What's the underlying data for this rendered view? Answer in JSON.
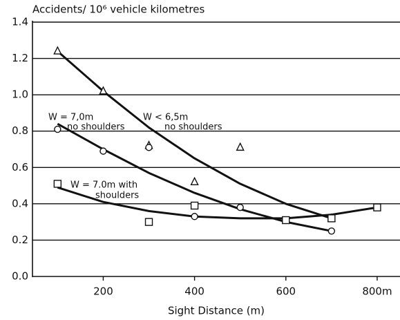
{
  "chart_data": {
    "type": "scatter",
    "title": "Accidents/ 10⁶ vehicle kilometres",
    "x_label": "Sight Distance (m)",
    "xlim": [
      45,
      850
    ],
    "ylim": [
      0,
      1.4
    ],
    "xticks": [
      200,
      400,
      600,
      {
        "value": 800,
        "label": "800m"
      }
    ],
    "yticks": [
      {
        "value": 0,
        "label": "0.0"
      },
      0.2,
      0.4,
      0.6,
      0.8,
      {
        "value": 1,
        "label": "1.0"
      },
      1.2,
      1.4
    ],
    "grid": true,
    "color": "#111111",
    "series": [
      {
        "marker": "triangle",
        "x": [
          100,
          200,
          300,
          400,
          500,
          700
        ],
        "values": [
          1.24,
          1.02,
          0.72,
          0.52,
          0.71,
          0.32
        ]
      },
      {
        "marker": "circle",
        "x": [
          100,
          200,
          300,
          400,
          500,
          700
        ],
        "values": [
          0.81,
          0.69,
          0.71,
          0.33,
          0.38,
          0.25
        ]
      },
      {
        "marker": "square",
        "x": [
          100,
          300,
          400,
          600,
          700,
          800
        ],
        "values": [
          0.51,
          0.3,
          0.39,
          0.31,
          0.32,
          0.38
        ]
      }
    ],
    "curves": [
      {
        "x": [
          100,
          200,
          300,
          400,
          500,
          600,
          700
        ],
        "values": [
          1.24,
          1.02,
          0.82,
          0.65,
          0.51,
          0.4,
          0.32
        ]
      },
      {
        "x": [
          100,
          200,
          300,
          400,
          500,
          600,
          700
        ],
        "values": [
          0.84,
          0.7,
          0.57,
          0.46,
          0.37,
          0.3,
          0.25
        ]
      },
      {
        "x": [
          100,
          200,
          300,
          400,
          500,
          600,
          700,
          800
        ],
        "values": [
          0.49,
          0.41,
          0.36,
          0.33,
          0.32,
          0.32,
          0.34,
          0.38
        ]
      }
    ],
    "annotations": [
      "W = 7,0m",
      "no shoulders",
      "W < 6,5m",
      "no shoulders",
      "W = 7.0m with",
      "shoulders"
    ]
  }
}
